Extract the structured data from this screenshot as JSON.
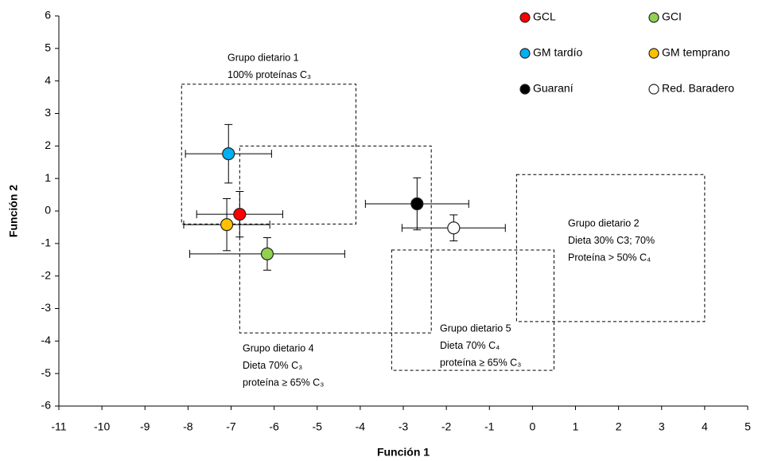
{
  "chart_data": {
    "type": "scatter",
    "x_label": "Función 1",
    "y_label": "Función 2",
    "xlim": [
      -11,
      5
    ],
    "ylim": [
      -6,
      6
    ],
    "xticks": [
      -11,
      -10,
      -9,
      -8,
      -7,
      -6,
      -5,
      -4,
      -3,
      -2,
      -1,
      0,
      1,
      2,
      3,
      4,
      5
    ],
    "yticks": [
      -6,
      -5,
      -4,
      -3,
      -2,
      -1,
      0,
      1,
      2,
      3,
      4,
      5,
      6
    ],
    "series": [
      {
        "name": "GCL",
        "color": "#ff0000",
        "x": [
          -6.8
        ],
        "values": [
          -0.1
        ],
        "x_error": [
          1.0
        ],
        "y_error": [
          0.7
        ]
      },
      {
        "name": "GCI",
        "color": "#92d050",
        "x": [
          -6.16
        ],
        "values": [
          -1.32
        ],
        "x_error": [
          1.8
        ],
        "y_error": [
          0.5
        ]
      },
      {
        "name": "GM tardío",
        "color": "#00b0f0",
        "x": [
          -7.06
        ],
        "values": [
          1.76
        ],
        "x_error": [
          1.0
        ],
        "y_error": [
          0.9
        ]
      },
      {
        "name": "GM temprano",
        "color": "#ffc000",
        "x": [
          -7.1
        ],
        "values": [
          -0.42
        ],
        "x_error": [
          1.0
        ],
        "y_error": [
          0.8
        ]
      },
      {
        "name": "Guaraní",
        "color": "#000000",
        "x": [
          -2.68
        ],
        "values": [
          0.22
        ],
        "x_error": [
          1.2
        ],
        "y_error": [
          0.8
        ]
      },
      {
        "name": "Red. Baradero",
        "color": "#ffffff",
        "x": [
          -1.83
        ],
        "values": [
          -0.52
        ],
        "x_error": [
          1.2
        ],
        "y_error": [
          0.4
        ]
      }
    ],
    "regions": [
      {
        "lines": [
          "Grupo dietario 1",
          "100% proteínas C₃"
        ],
        "x": [
          -8.15,
          -4.1
        ],
        "y": [
          -0.4,
          3.9
        ]
      },
      {
        "lines": [
          "Grupo dietario 4",
          "Dieta 70% C₃",
          "proteína ≥ 65% C₃"
        ],
        "x": [
          -6.8,
          -2.35
        ],
        "y": [
          -3.75,
          2.0
        ]
      },
      {
        "lines": [
          "Grupo dietario 2",
          "Dieta 30% C3; 70%",
          "Proteína > 50% C₄"
        ],
        "x": [
          -0.37,
          4.0
        ],
        "y": [
          -3.4,
          1.12
        ]
      },
      {
        "lines": [
          "Grupo dietario 5",
          "Dieta 70% C₄",
          "proteína ≥ 65% C₃"
        ],
        "x": [
          -3.27,
          0.5
        ],
        "y": [
          -4.9,
          -1.2
        ]
      }
    ]
  }
}
